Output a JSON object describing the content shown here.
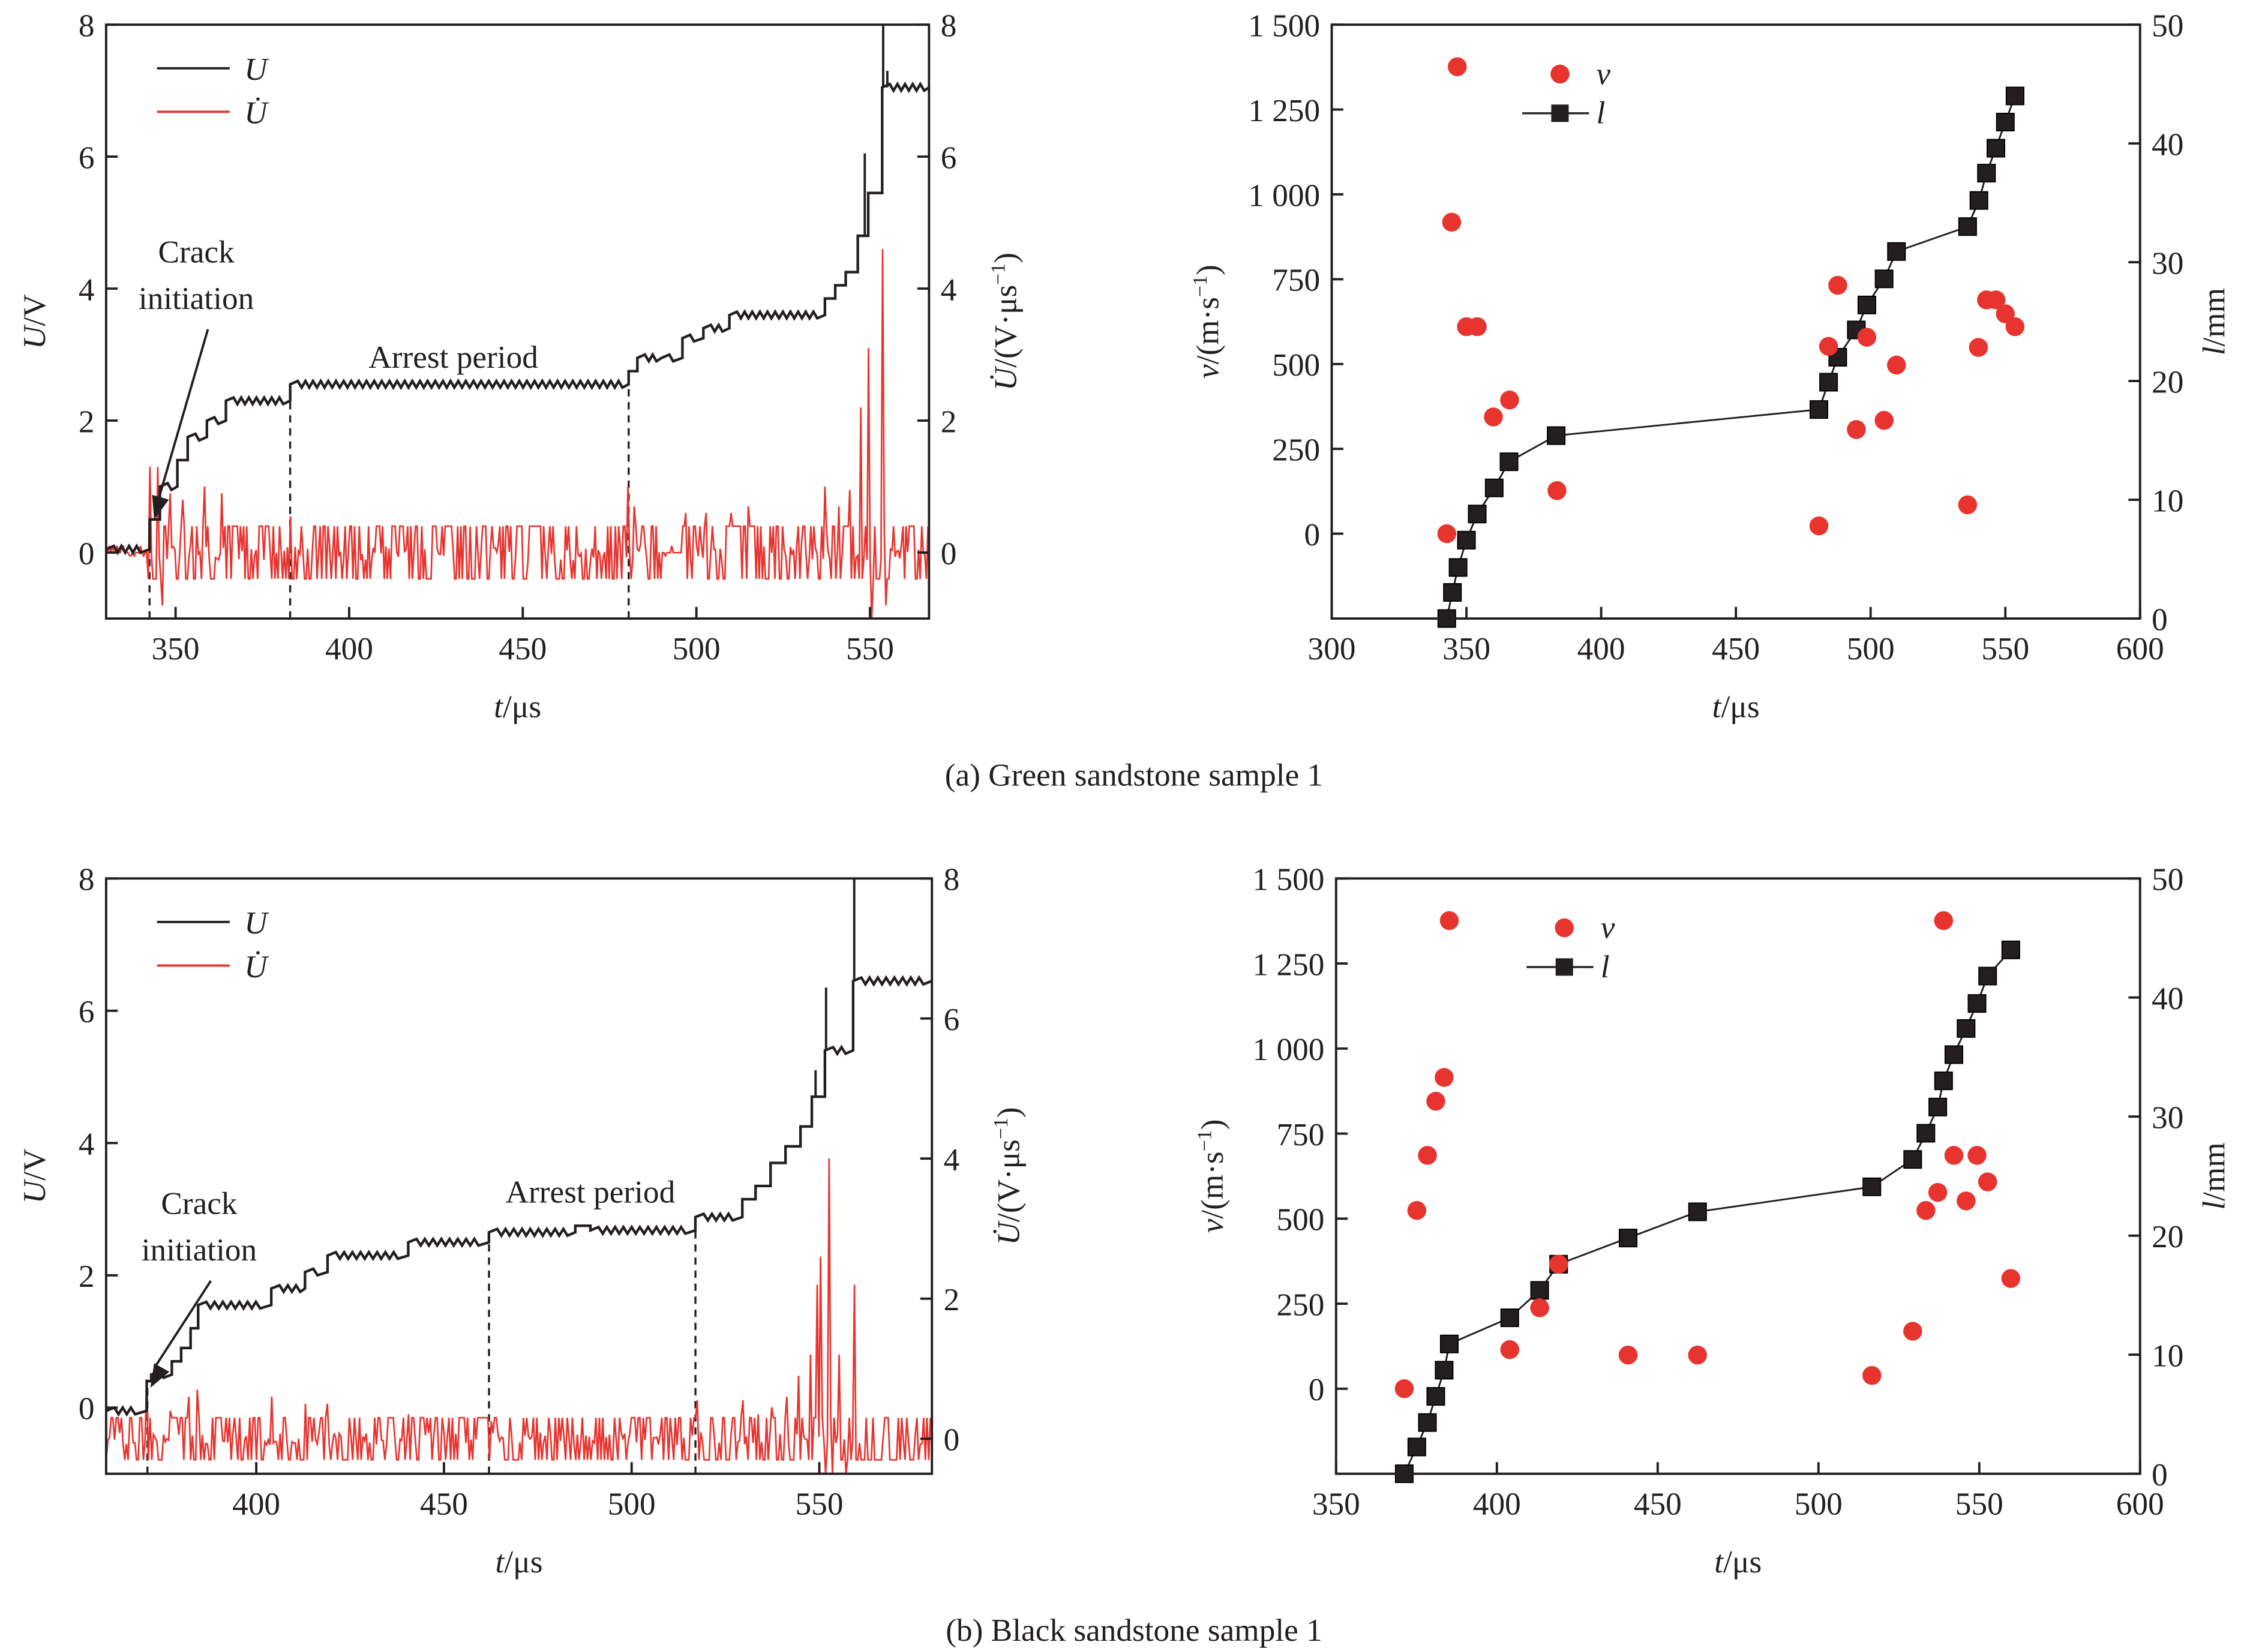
{
  "colors": {
    "U": "#231f20",
    "Udot": "#e8342f",
    "v": "#e8342f",
    "l": "#231f20"
  },
  "captions": {
    "a": "(a) Green sandstone sample 1",
    "b": "(b) Black sandstone sample 1"
  },
  "chart_data": [
    {
      "id": "a-left",
      "type": "line",
      "panel": "(a) Green sandstone sample 1",
      "xlabel_var": "t",
      "xlabel_unit": "/μs",
      "ylabel_var": "U",
      "ylabel_unit": "/V",
      "y2label_var": "U̇",
      "y2label_unit": "/(V·μs",
      "y2label_sup": "−1",
      "y2label_close": ")",
      "xlim": [
        330,
        567
      ],
      "ylim": [
        -1,
        8
      ],
      "y2lim": [
        -1,
        8
      ],
      "xticks": [
        350,
        400,
        450,
        500,
        550
      ],
      "yticks": [
        0,
        2,
        4,
        6,
        8
      ],
      "y2ticks": [
        0,
        2,
        4,
        6,
        8
      ],
      "legend": [
        {
          "label": "U",
          "series": "U"
        },
        {
          "label": "U̇",
          "series": "Udot"
        }
      ],
      "legend_position": "top-left",
      "annotations": [
        {
          "text_line1": "Crack",
          "text_line2": "initiation",
          "points_to": [
            343,
            0.5
          ]
        },
        {
          "text": "Arrest period",
          "at": [
            430,
            2.8
          ]
        }
      ],
      "dashed_markers_t": [
        342.5,
        383,
        480.5
      ],
      "series": [
        {
          "name": "U",
          "kind": "step",
          "steps": [
            [
              330,
              0.05
            ],
            [
              342.5,
              0.5
            ],
            [
              345.5,
              1.0
            ],
            [
              350.5,
              1.4
            ],
            [
              353.5,
              1.75
            ],
            [
              359,
              2.0
            ],
            [
              364.5,
              2.3
            ],
            [
              383,
              2.55
            ],
            [
              480.5,
              2.75
            ],
            [
              483,
              2.95
            ],
            [
              490,
              2.95
            ],
            [
              496,
              3.25
            ],
            [
              502,
              3.4
            ],
            [
              509.5,
              3.6
            ],
            [
              537,
              3.85
            ],
            [
              540,
              4.05
            ],
            [
              543,
              4.25
            ],
            [
              546.5,
              4.8
            ],
            [
              549.5,
              5.45
            ],
            [
              553.5,
              7.05
            ],
            [
              567,
              7.05
            ]
          ],
          "spikes": [
            [
              548.5,
              6.05
            ],
            [
              553.8,
              8.0
            ],
            [
              555.0,
              7.3
            ]
          ]
        },
        {
          "name": "Udot",
          "kind": "noise",
          "baseline": 0,
          "noise_amp": 0.4,
          "quiet_ranges": [
            [
              330,
              342
            ],
            [
              490,
              496
            ]
          ],
          "spikes": [
            [
              342.5,
              1.3
            ],
            [
              344.8,
              1.3
            ],
            [
              346,
              -0.8
            ],
            [
              348.5,
              0.9
            ],
            [
              352,
              0.8
            ],
            [
              358.5,
              1.0
            ],
            [
              363.5,
              0.9
            ],
            [
              383,
              0.55
            ],
            [
              480.5,
              1.0
            ],
            [
              482,
              0.7
            ],
            [
              497,
              0.6
            ],
            [
              503,
              0.6
            ],
            [
              510,
              0.6
            ],
            [
              515,
              0.7
            ],
            [
              537,
              1.0
            ],
            [
              541,
              0.7
            ],
            [
              544,
              0.95
            ],
            [
              547.2,
              2.2
            ],
            [
              549.8,
              3.1
            ],
            [
              550.5,
              -1.0
            ],
            [
              553.8,
              4.6
            ],
            [
              554.6,
              -0.8
            ]
          ]
        }
      ]
    },
    {
      "id": "a-right",
      "type": "scatter",
      "panel": "(a) Green sandstone sample 1",
      "xlabel_var": "t",
      "xlabel_unit": "/μs",
      "ylabel_var": "v",
      "ylabel_unit": "/(m·s",
      "ylabel_sup": "−1",
      "ylabel_close": ")",
      "y2label_var": "l",
      "y2label_unit": "/mm",
      "xlim": [
        300,
        600
      ],
      "ylim": [
        -250,
        1500
      ],
      "y2lim": [
        0,
        50
      ],
      "xticks": [
        300,
        350,
        400,
        450,
        500,
        550,
        600
      ],
      "yticks": [
        0,
        250,
        500,
        750,
        1000,
        1250,
        1500
      ],
      "ytick_labels": [
        "0",
        "250",
        "500",
        "750",
        "1 000",
        "1 250",
        "1 500"
      ],
      "y2ticks": [
        0,
        10,
        20,
        30,
        40,
        50
      ],
      "legend": [
        {
          "label": "v",
          "series": "v"
        },
        {
          "label": "l",
          "series": "l"
        }
      ],
      "legend_position": "top-left",
      "series": [
        {
          "name": "v",
          "kind": "scatter",
          "axis": "left",
          "points": [
            [
              342.7,
              0
            ],
            [
              344.5,
              918
            ],
            [
              346.6,
              1376
            ],
            [
              350,
              610
            ],
            [
              354,
              610
            ],
            [
              360,
              344
            ],
            [
              366,
              394
            ],
            [
              383.6,
              127
            ],
            [
              480.8,
              23
            ],
            [
              484.4,
              552
            ],
            [
              487.8,
              732
            ],
            [
              494.7,
              307
            ],
            [
              498.6,
              579
            ],
            [
              505,
              334
            ],
            [
              509.6,
              497
            ],
            [
              536,
              85
            ],
            [
              540,
              549
            ],
            [
              543,
              689
            ],
            [
              546.5,
              689
            ],
            [
              550,
              648
            ],
            [
              553.6,
              610
            ]
          ]
        },
        {
          "name": "l",
          "kind": "line-square",
          "axis": "right",
          "points": [
            [
              342.7,
              0
            ],
            [
              344.8,
              2.2
            ],
            [
              346.9,
              4.3
            ],
            [
              350,
              6.6
            ],
            [
              354,
              8.8
            ],
            [
              360.3,
              11.0
            ],
            [
              365.8,
              13.2
            ],
            [
              383.3,
              15.4
            ],
            [
              480.8,
              17.6
            ],
            [
              484.4,
              19.9
            ],
            [
              487.8,
              22.0
            ],
            [
              494.7,
              24.3
            ],
            [
              498.6,
              26.4
            ],
            [
              505,
              28.6
            ],
            [
              509.6,
              30.9
            ],
            [
              536,
              33.0
            ],
            [
              540.2,
              35.2
            ],
            [
              543,
              37.5
            ],
            [
              546.5,
              39.6
            ],
            [
              550,
              41.8
            ],
            [
              553.6,
              44.0
            ]
          ]
        }
      ]
    },
    {
      "id": "b-left",
      "type": "line",
      "panel": "(b) Black sandstone sample 1",
      "xlabel_var": "t",
      "xlabel_unit": "/μs",
      "ylabel_var": "U",
      "ylabel_unit": "/V",
      "y2label_var": "U̇",
      "y2label_unit": "/(V·μs",
      "y2label_sup": "−1",
      "y2label_close": ")",
      "xlim": [
        360,
        580
      ],
      "ylim": [
        -1,
        8
      ],
      "y2lim": [
        -0.5,
        8
      ],
      "xticks": [
        400,
        450,
        500,
        550
      ],
      "yticks": [
        0,
        2,
        4,
        6,
        8
      ],
      "y2ticks": [
        0,
        2,
        4,
        6,
        8
      ],
      "legend": [
        {
          "label": "U",
          "series": "U"
        },
        {
          "label": "U̇",
          "series": "Udot"
        }
      ],
      "legend_position": "top-left",
      "annotations": [
        {
          "text_line1": "Crack",
          "text_line2": "initiation",
          "points_to": [
            371,
            0.3
          ]
        },
        {
          "text": "Arrest period",
          "at": [
            489,
            3.1
          ]
        }
      ],
      "dashed_markers_t": [
        371,
        462,
        517
      ],
      "series": [
        {
          "name": "U",
          "kind": "step",
          "steps": [
            [
              360,
              -0.05
            ],
            [
              370.8,
              0.4
            ],
            [
              372,
              0.5
            ],
            [
              377.5,
              0.7
            ],
            [
              380,
              0.9
            ],
            [
              382.5,
              1.2
            ],
            [
              384.5,
              1.55
            ],
            [
              404,
              1.8
            ],
            [
              413,
              2.05
            ],
            [
              419,
              2.3
            ],
            [
              440.5,
              2.5
            ],
            [
              462,
              2.65
            ],
            [
              485,
              2.75
            ],
            [
              489,
              2.68
            ],
            [
              517,
              2.88
            ],
            [
              529.5,
              3.15
            ],
            [
              533,
              3.35
            ],
            [
              537,
              3.7
            ],
            [
              541,
              3.95
            ],
            [
              545,
              4.25
            ],
            [
              548,
              4.7
            ],
            [
              551.5,
              5.4
            ],
            [
              559,
              6.45
            ],
            [
              580,
              6.45
            ]
          ],
          "spikes": [
            [
              549,
              5.1
            ],
            [
              551.8,
              6.35
            ],
            [
              559.3,
              8.0
            ]
          ]
        },
        {
          "name": "Udot",
          "kind": "noise",
          "baseline": 0,
          "noise_amp": 0.3,
          "quiet_ranges": [],
          "spikes": [
            [
              370.8,
              0.85
            ],
            [
              377,
              0.4
            ],
            [
              382.2,
              0.6
            ],
            [
              384.2,
              0.7
            ],
            [
              404,
              0.6
            ],
            [
              413,
              0.5
            ],
            [
              419,
              0.5
            ],
            [
              440.5,
              0.35
            ],
            [
              462.5,
              0.25
            ],
            [
              517.5,
              0.55
            ],
            [
              529.5,
              0.55
            ],
            [
              533.5,
              0.35
            ],
            [
              537.5,
              0.45
            ],
            [
              541.5,
              0.6
            ],
            [
              544.5,
              0.9
            ],
            [
              547.5,
              1.2
            ],
            [
              549.3,
              2.2
            ],
            [
              550.5,
              2.6
            ],
            [
              551.5,
              -0.5
            ],
            [
              552.7,
              4.0
            ],
            [
              553.5,
              -0.5
            ],
            [
              555.5,
              1.2
            ],
            [
              557,
              -0.5
            ],
            [
              559.5,
              2.2
            ]
          ]
        }
      ]
    },
    {
      "id": "b-right",
      "type": "scatter",
      "panel": "(b) Black sandstone sample 1",
      "xlabel_var": "t",
      "xlabel_unit": "/μs",
      "ylabel_var": "v",
      "ylabel_unit": "/(m·s",
      "ylabel_sup": "−1",
      "ylabel_close": ")",
      "y2label_var": "l",
      "y2label_unit": "/mm",
      "xlim": [
        350,
        600
      ],
      "ylim": [
        -250,
        1500
      ],
      "y2lim": [
        0,
        50
      ],
      "xticks": [
        350,
        400,
        450,
        500,
        550,
        600
      ],
      "yticks": [
        0,
        250,
        500,
        750,
        1000,
        1250,
        1500
      ],
      "ytick_labels": [
        "0",
        "250",
        "500",
        "750",
        "1 000",
        "1 250",
        "1 500"
      ],
      "y2ticks": [
        0,
        10,
        20,
        30,
        40,
        50
      ],
      "legend": [
        {
          "label": "v",
          "series": "v"
        },
        {
          "label": "l",
          "series": "l"
        }
      ],
      "legend_position": "top-left",
      "series": [
        {
          "name": "v",
          "kind": "scatter",
          "axis": "left",
          "points": [
            [
              371.2,
              0
            ],
            [
              375.1,
              524
            ],
            [
              378.4,
              686
            ],
            [
              381,
              845
            ],
            [
              383.6,
              915
            ],
            [
              385.2,
              1376
            ],
            [
              404,
              115
            ],
            [
              413.3,
              238
            ],
            [
              419.2,
              366
            ],
            [
              440.8,
              99
            ],
            [
              462.4,
              99
            ],
            [
              516.6,
              39
            ],
            [
              529.3,
              169
            ],
            [
              533.4,
              524
            ],
            [
              537.1,
              577
            ],
            [
              538.9,
              1376
            ],
            [
              542.1,
              686
            ],
            [
              545.9,
              552
            ],
            [
              549.3,
              686
            ],
            [
              552.6,
              608
            ],
            [
              559.8,
              324
            ]
          ]
        },
        {
          "name": "l",
          "kind": "line-square",
          "axis": "right",
          "points": [
            [
              371.2,
              0
            ],
            [
              375.1,
              2.25
            ],
            [
              378.4,
              4.3
            ],
            [
              381,
              6.5
            ],
            [
              383.6,
              8.7
            ],
            [
              385.2,
              10.9
            ],
            [
              404,
              13.1
            ],
            [
              413.3,
              15.4
            ],
            [
              419.2,
              17.6
            ],
            [
              440.8,
              19.8
            ],
            [
              462.4,
              22.0
            ],
            [
              516.6,
              24.1
            ],
            [
              529.3,
              26.4
            ],
            [
              533.4,
              28.6
            ],
            [
              537.1,
              30.8
            ],
            [
              538.9,
              33.0
            ],
            [
              542.1,
              35.2
            ],
            [
              545.9,
              37.4
            ],
            [
              549.3,
              39.5
            ],
            [
              552.6,
              41.8
            ],
            [
              559.8,
              44.0
            ]
          ]
        }
      ]
    }
  ]
}
